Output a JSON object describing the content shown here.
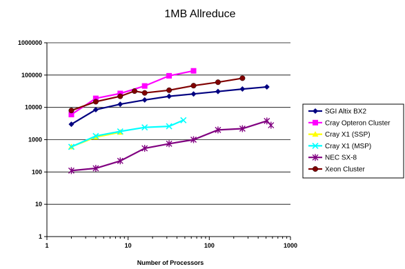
{
  "chart_data": {
    "type": "line",
    "title": "1MB Allreduce",
    "xlabel": "Number of Processors",
    "ylabel": "",
    "x_scale": "log",
    "y_scale": "log",
    "xlim": [
      1,
      1000
    ],
    "ylim": [
      1,
      1000000
    ],
    "x_ticks": [
      "1",
      "10",
      "100",
      "1000"
    ],
    "y_ticks": [
      "1",
      "10",
      "100",
      "1000",
      "10000",
      "100000",
      "1000000"
    ],
    "grid": "horizontal",
    "legend_position": "right",
    "series": [
      {
        "name": "SGI Altix BX2",
        "color": "#000080",
        "marker": "diamond",
        "x": [
          2,
          4,
          8,
          16,
          32,
          64,
          128,
          256,
          512
        ],
        "y": [
          3000,
          8500,
          12500,
          17000,
          22000,
          26000,
          31000,
          37000,
          43000
        ]
      },
      {
        "name": "Cray Opteron Cluster",
        "color": "#ff00ff",
        "marker": "square",
        "x": [
          2,
          4,
          8,
          16,
          32,
          64
        ],
        "y": [
          6000,
          19000,
          27000,
          46000,
          95000,
          135000
        ]
      },
      {
        "name": "Cray X1 (SSP)",
        "color": "#ffff00",
        "marker": "triangle",
        "x": [
          2,
          4,
          8
        ],
        "y": [
          600,
          1200,
          1700
        ]
      },
      {
        "name": "Cray X1 (MSP)",
        "color": "#00ffff",
        "marker": "x",
        "x": [
          2,
          4,
          8,
          16,
          32,
          48
        ],
        "y": [
          600,
          1300,
          1800,
          2400,
          2600,
          4000
        ]
      },
      {
        "name": "NEC SX-8",
        "color": "#800080",
        "marker": "star",
        "x": [
          2,
          4,
          8,
          16,
          32,
          64,
          128,
          256,
          512,
          576
        ],
        "y": [
          110,
          130,
          220,
          540,
          750,
          1000,
          2000,
          2200,
          3800,
          2800
        ]
      },
      {
        "name": "Xeon Cluster",
        "color": "#800000",
        "marker": "circle",
        "x": [
          2,
          4,
          8,
          12,
          16,
          32,
          64,
          128,
          256
        ],
        "y": [
          8000,
          15000,
          22000,
          32000,
          28000,
          34000,
          47000,
          60000,
          80000
        ]
      }
    ]
  }
}
